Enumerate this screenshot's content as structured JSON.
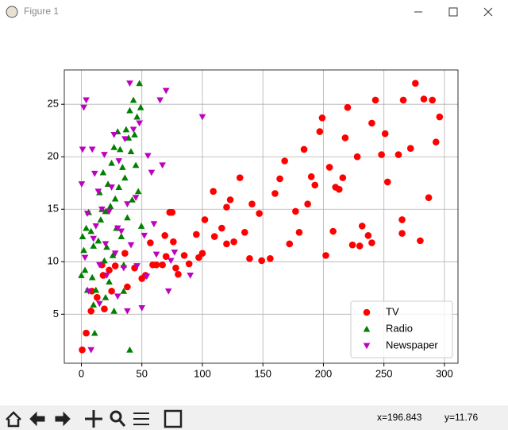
{
  "window": {
    "title": "Figure 1"
  },
  "chart_data": {
    "type": "scatter",
    "xlim": [
      -14.1,
      311.2
    ],
    "ylim": [
      0.33,
      28.27
    ],
    "xticks": [
      0,
      50,
      100,
      150,
      200,
      250,
      300
    ],
    "yticks": [
      5,
      10,
      15,
      20,
      25
    ],
    "grid": true,
    "legend": "lower right",
    "series": [
      {
        "name": "TV",
        "color": "#ff0000",
        "marker": "circle",
        "x": [
          0.7,
          4,
          8,
          8.7,
          13,
          17,
          18,
          19,
          23,
          25,
          28,
          36,
          38,
          44,
          50,
          53,
          57,
          59,
          62,
          67,
          69,
          70,
          73,
          75,
          76,
          78,
          80,
          85,
          89,
          95,
          97,
          100,
          102,
          109,
          110,
          116,
          120,
          123,
          126,
          131,
          135,
          139,
          141,
          147,
          149,
          156,
          164,
          168,
          172,
          177,
          180,
          184,
          187,
          193,
          197,
          199,
          202,
          205,
          208,
          213,
          216,
          218,
          220,
          224,
          228,
          232,
          237,
          240,
          243,
          248,
          251,
          253,
          262,
          265,
          266,
          272,
          276,
          280,
          283,
          287,
          290,
          293,
          296,
          265,
          240,
          160,
          190,
          120,
          230,
          210
        ],
        "values": [
          1.6,
          3.2,
          5.3,
          7.2,
          6.6,
          9.7,
          8.7,
          5.5,
          9.2,
          7.2,
          9.6,
          10.8,
          7.6,
          9.4,
          8.4,
          8.7,
          11.8,
          9.7,
          9.7,
          9.7,
          12.5,
          10.5,
          14.7,
          14.7,
          11.9,
          9.4,
          8.8,
          10.6,
          9.8,
          12.6,
          10.4,
          10.8,
          14.0,
          16.7,
          12.4,
          13.2,
          15.2,
          15.9,
          11.9,
          18.0,
          12.8,
          10.3,
          15.5,
          14.6,
          10.1,
          10.3,
          17.9,
          19.6,
          11.7,
          14.8,
          12.8,
          20.7,
          15.5,
          17.3,
          22.4,
          23.7,
          10.6,
          19.0,
          12.9,
          16.9,
          18.0,
          21.8,
          24.7,
          11.6,
          20.0,
          13.4,
          12.5,
          23.2,
          25.4,
          20.2,
          22.2,
          17.6,
          20.2,
          12.7,
          25.4,
          20.8,
          27.0,
          12.0,
          25.5,
          16.1,
          25.4,
          21.4,
          23.8,
          14.0,
          11.8,
          16.5,
          18.1,
          11.7,
          11.5,
          17.1
        ]
      },
      {
        "name": "Radio",
        "color": "#008000",
        "marker": "triangle-up",
        "x": [
          0,
          1,
          2,
          3,
          4,
          5,
          6,
          8,
          9,
          10,
          11,
          12,
          14,
          15,
          16,
          17,
          18,
          19,
          20,
          21,
          22,
          23,
          24,
          25,
          26,
          27,
          28,
          29,
          30,
          31,
          32,
          33,
          34,
          35,
          36,
          37,
          38,
          39,
          40,
          40,
          41,
          42,
          43,
          44,
          45,
          46,
          47,
          48,
          49,
          49.6,
          10,
          27,
          35,
          20
        ],
        "values": [
          8.7,
          12.4,
          11.1,
          9.2,
          13.2,
          7.3,
          14.7,
          12.9,
          8.5,
          11.5,
          3.2,
          7.3,
          12.0,
          16.6,
          14.0,
          15.0,
          18.5,
          10.1,
          14.8,
          11.4,
          17.4,
          8.1,
          15.3,
          19.4,
          10.6,
          20.9,
          16.0,
          13.2,
          22.4,
          17.1,
          20.7,
          12.4,
          19.0,
          7.2,
          18.0,
          22.6,
          14.2,
          21.8,
          1.6,
          24.4,
          20.5,
          15.9,
          25.4,
          22.1,
          19.2,
          23.8,
          16.7,
          27.0,
          24.7,
          13.4,
          5.9,
          5.3,
          9.7,
          6.6
        ]
      },
      {
        "name": "Newspaper",
        "color": "#bf00bf",
        "marker": "triangle-down",
        "x": [
          0.3,
          1,
          2,
          3,
          4,
          5,
          6,
          8,
          9,
          10,
          11,
          12,
          14,
          15,
          17,
          19,
          20,
          21,
          23,
          25,
          27,
          28,
          30,
          31,
          33,
          35,
          36,
          38,
          40,
          41,
          43,
          45,
          46,
          48,
          50,
          52,
          54,
          55,
          58,
          60,
          62,
          65,
          67,
          70,
          72,
          74,
          77,
          90,
          100,
          30,
          15,
          38
        ],
        "values": [
          17.4,
          20.7,
          24.7,
          10.4,
          25.4,
          14.6,
          7.2,
          1.6,
          20.7,
          12.2,
          18.4,
          13.4,
          16.7,
          9.7,
          15.0,
          20.2,
          11.7,
          8.7,
          14.8,
          17.1,
          22.1,
          10.8,
          13.2,
          19.6,
          12.9,
          9.4,
          21.7,
          15.5,
          27.0,
          11.6,
          22.6,
          16.1,
          9.6,
          23.2,
          5.6,
          12.5,
          8.6,
          20.1,
          18.5,
          13.6,
          10.7,
          25.4,
          19.2,
          26.3,
          7.2,
          10.1,
          10.9,
          8.7,
          23.8,
          6.7,
          6.0,
          5.3
        ]
      }
    ]
  },
  "status": {
    "x": "x=196.843",
    "y": "y=11.76"
  }
}
